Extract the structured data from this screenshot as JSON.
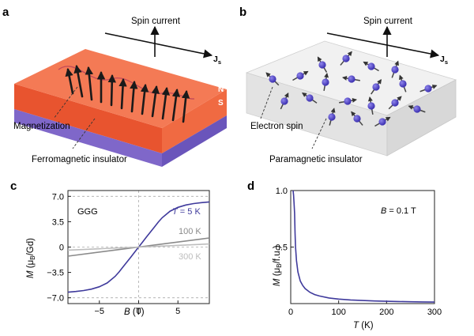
{
  "figure": {
    "panels": {
      "a": {
        "label": "a",
        "spin_current": "Spin current",
        "js_main": "J",
        "js_sub": "s",
        "pole_n": "N",
        "pole_s": "S",
        "magnetization": "Magnetization",
        "insulator": "Ferromagnetic insulator"
      },
      "b": {
        "label": "b",
        "spin_current": "Spin current",
        "js_main": "J",
        "js_sub": "s",
        "electron_spin": "Electron spin",
        "insulator": "Paramagnetic insulator"
      },
      "c": {
        "label": "c"
      },
      "d": {
        "label": "d"
      }
    },
    "colors": {
      "ferro_top": "#f1643f",
      "ferro_side": "#e8542f",
      "ferro_bottom": "#7a63c6",
      "para_box": "#e4e4e4",
      "electron": "#5e4fd2",
      "curve_5k": "#3f3a9c",
      "curve_100k": "#8a8a8a",
      "curve_300k": "#bdbdbd"
    }
  },
  "chart_data": [
    {
      "panel": "c",
      "type": "line",
      "annotation": "GGG",
      "xlabel_var": "B",
      "xlabel_unit": "(T)",
      "ylabel_var": "M",
      "ylabel_unit": "(μ",
      "ylabel_sub": "B",
      "ylabel_tail": "/Gd)",
      "xlim": [
        -9,
        9
      ],
      "ylim": [
        -7.8,
        7.8
      ],
      "xticks": [
        -5,
        0,
        5
      ],
      "xtick_labels": [
        "−5",
        "0",
        "5"
      ],
      "yticks": [
        7.0,
        3.5,
        0,
        -3.5,
        -7.0
      ],
      "ytick_labels": [
        "7.0",
        "3.5",
        "0",
        "−3.5",
        "−7.0"
      ],
      "reference_lines": {
        "y": [
          7.0,
          -7.0
        ],
        "x0": true,
        "y0": true
      },
      "series": [
        {
          "label_var": "T",
          "label_rest": " = 5 K",
          "x": [
            -9,
            -8,
            -7,
            -6,
            -5,
            -4,
            -3,
            -2.5,
            -2,
            -1.5,
            -1,
            -0.5,
            0,
            0.5,
            1,
            1.5,
            2,
            2.5,
            3,
            4,
            5,
            6,
            7,
            8,
            9
          ],
          "y": [
            -6.23,
            -6.13,
            -6.0,
            -5.8,
            -5.48,
            -4.95,
            -4.05,
            -3.45,
            -2.75,
            -2.07,
            -1.39,
            -0.7,
            0,
            0.7,
            1.39,
            2.07,
            2.75,
            3.45,
            4.05,
            4.95,
            5.48,
            5.8,
            6.0,
            6.13,
            6.23
          ]
        },
        {
          "label": "100 K",
          "x": [
            -9,
            9
          ],
          "y": [
            -1.25,
            1.25
          ]
        },
        {
          "label": "300 K",
          "x": [
            -9,
            9
          ],
          "y": [
            -0.42,
            0.42
          ]
        }
      ]
    },
    {
      "panel": "d",
      "type": "line",
      "annotation_var": "B",
      "annotation_rest": " = 0.1 T",
      "xlabel_var": "T",
      "xlabel_unit": "(K)",
      "ylabel_var": "M",
      "ylabel_unit": "(μ",
      "ylabel_sub": "B",
      "ylabel_tail": "/f.u.)",
      "xlim": [
        0,
        300
      ],
      "ylim": [
        0,
        1.0
      ],
      "xticks": [
        0,
        100,
        200,
        300
      ],
      "xtick_labels": [
        "0",
        "100",
        "200",
        "300"
      ],
      "yticks": [
        0.5,
        1.0
      ],
      "ytick_labels": [
        "0.5",
        "1.0"
      ],
      "series": [
        {
          "name": "B = 0.1 T",
          "x": [
            5,
            6,
            7,
            8,
            9,
            10,
            12,
            15,
            20,
            25,
            30,
            40,
            50,
            60,
            80,
            100,
            125,
            150,
            175,
            200,
            225,
            250,
            275,
            300
          ],
          "y": [
            1.0,
            0.96,
            0.89,
            0.8,
            0.62,
            0.5,
            0.38,
            0.28,
            0.2,
            0.16,
            0.133,
            0.1,
            0.08,
            0.067,
            0.05,
            0.04,
            0.032,
            0.027,
            0.023,
            0.02,
            0.018,
            0.016,
            0.0145,
            0.0133
          ]
        }
      ]
    }
  ]
}
